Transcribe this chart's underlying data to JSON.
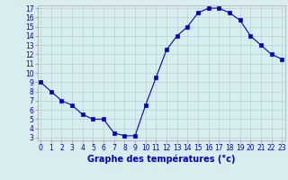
{
  "hours": [
    0,
    1,
    2,
    3,
    4,
    5,
    6,
    7,
    8,
    9,
    10,
    11,
    12,
    13,
    14,
    15,
    16,
    17,
    18,
    19,
    20,
    21,
    22,
    23
  ],
  "temperatures": [
    9.0,
    8.0,
    7.0,
    6.5,
    5.5,
    5.0,
    5.0,
    3.5,
    3.2,
    3.2,
    6.5,
    9.5,
    12.5,
    14.0,
    15.0,
    16.5,
    17.0,
    17.0,
    16.5,
    15.7,
    14.0,
    13.0,
    12.0,
    11.5
  ],
  "line_color": "#0000cc",
  "marker": "s",
  "marker_size": 2.5,
  "bg_color": "#d8eeee",
  "grid_color": "#aacccc",
  "xlabel": "Graphe des températures (°c)",
  "xlabel_color": "#0000cc",
  "ylim": [
    3,
    17
  ],
  "xlim": [
    0,
    23
  ],
  "yticks": [
    3,
    4,
    5,
    6,
    7,
    8,
    9,
    10,
    11,
    12,
    13,
    14,
    15,
    16,
    17
  ],
  "xticks": [
    0,
    1,
    2,
    3,
    4,
    5,
    6,
    7,
    8,
    9,
    10,
    11,
    12,
    13,
    14,
    15,
    16,
    17,
    18,
    19,
    20,
    21,
    22,
    23
  ],
  "tick_fontsize": 5.5,
  "label_fontsize": 7.0,
  "spine_color": "#aaaaaa"
}
